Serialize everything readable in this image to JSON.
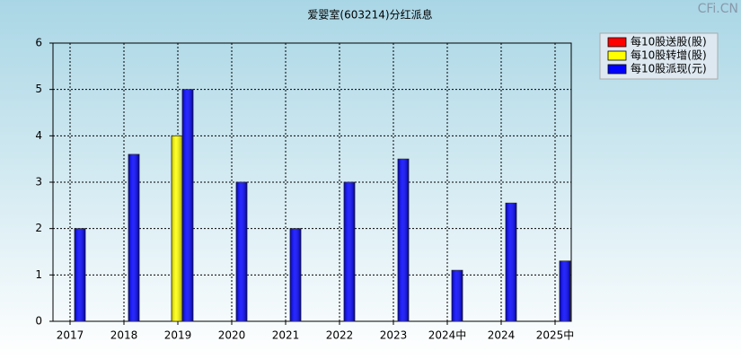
{
  "chart_data": {
    "type": "bar",
    "title": "爱婴室(603214)分红派息",
    "watermark": "CFi.CN",
    "categories": [
      "2017",
      "2018",
      "2019",
      "2020",
      "2021",
      "2022",
      "2023",
      "2024中",
      "2024",
      "2025中"
    ],
    "series": [
      {
        "name": "每10股送股(股)",
        "color": "#ff0000",
        "values": [
          null,
          null,
          null,
          null,
          null,
          null,
          null,
          null,
          null,
          null
        ]
      },
      {
        "name": "每10股转增(股)",
        "color": "#ffff00",
        "values": [
          null,
          null,
          4,
          null,
          null,
          null,
          null,
          null,
          null,
          null
        ]
      },
      {
        "name": "每10股派现(元)",
        "color": "#0000ff",
        "values": [
          2,
          3.6,
          5,
          3,
          2,
          3,
          3.5,
          1.1,
          2.55,
          1.3
        ]
      }
    ],
    "ylim": [
      0,
      6
    ],
    "yticks": [
      0,
      1,
      2,
      3,
      4,
      5,
      6
    ],
    "grid": true,
    "legend": "top-right"
  }
}
